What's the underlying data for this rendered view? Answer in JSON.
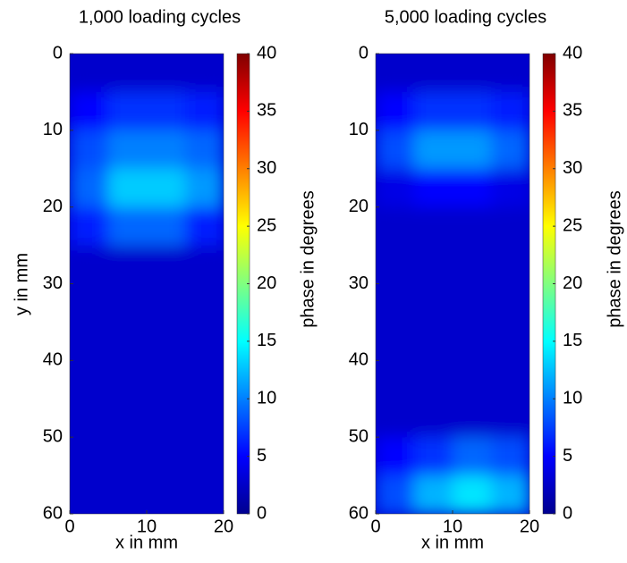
{
  "chart_data": [
    {
      "type": "heatmap",
      "title": "1,000 loading cycles",
      "x_label": "x in mm",
      "y_label": "y in mm",
      "colorbar_label": "phase in degrees",
      "xlim": [
        0,
        20
      ],
      "xticks": [
        0,
        10,
        20
      ],
      "ylim": [
        0,
        60
      ],
      "yticks": [
        0,
        10,
        20,
        30,
        40,
        50,
        60
      ],
      "y_inverted": true,
      "clim": [
        0,
        40
      ],
      "colorbar_ticks": [
        0,
        5,
        10,
        15,
        20,
        25,
        30,
        35,
        40
      ],
      "colormap": "jet",
      "xbins": [
        0,
        5,
        10,
        15,
        20
      ],
      "ybins": [
        0,
        5,
        10,
        15,
        20,
        25,
        30,
        35,
        40,
        45,
        50,
        55,
        60
      ],
      "values": [
        [
          3,
          3,
          3,
          3
        ],
        [
          5,
          7,
          7,
          6
        ],
        [
          8,
          10,
          10,
          9
        ],
        [
          9,
          13,
          13,
          11
        ],
        [
          6,
          9,
          9,
          6
        ],
        [
          3,
          3,
          3,
          3
        ],
        [
          3,
          3,
          3,
          3
        ],
        [
          3,
          3,
          3,
          3
        ],
        [
          3,
          3,
          3,
          3
        ],
        [
          3,
          3,
          3,
          3
        ],
        [
          3,
          3,
          3,
          3
        ],
        [
          3,
          3,
          3,
          3
        ]
      ]
    },
    {
      "type": "heatmap",
      "title": "5,000 loading cycles",
      "x_label": "x in mm",
      "colorbar_label": "phase in degrees",
      "xlim": [
        0,
        20
      ],
      "xticks": [
        0,
        10,
        20
      ],
      "ylim": [
        0,
        60
      ],
      "yticks": [
        0,
        10,
        20,
        30,
        40,
        50,
        60
      ],
      "y_inverted": true,
      "clim": [
        0,
        40
      ],
      "colorbar_ticks": [
        0,
        5,
        10,
        15,
        20,
        25,
        30,
        35,
        40
      ],
      "colormap": "jet",
      "xbins": [
        0,
        5,
        10,
        15,
        20
      ],
      "ybins": [
        0,
        5,
        10,
        15,
        20,
        25,
        30,
        35,
        40,
        45,
        50,
        55,
        60
      ],
      "values": [
        [
          3,
          3,
          3,
          3
        ],
        [
          5,
          7,
          7,
          6
        ],
        [
          8,
          11,
          11,
          9
        ],
        [
          4,
          5,
          5,
          4
        ],
        [
          3,
          3,
          3,
          3
        ],
        [
          3,
          3,
          3,
          3
        ],
        [
          3,
          3,
          3,
          3
        ],
        [
          3,
          3,
          3,
          3
        ],
        [
          3,
          3,
          3,
          3
        ],
        [
          3,
          3,
          3,
          3
        ],
        [
          5,
          7,
          9,
          8
        ],
        [
          8,
          12,
          14,
          12
        ]
      ]
    }
  ]
}
